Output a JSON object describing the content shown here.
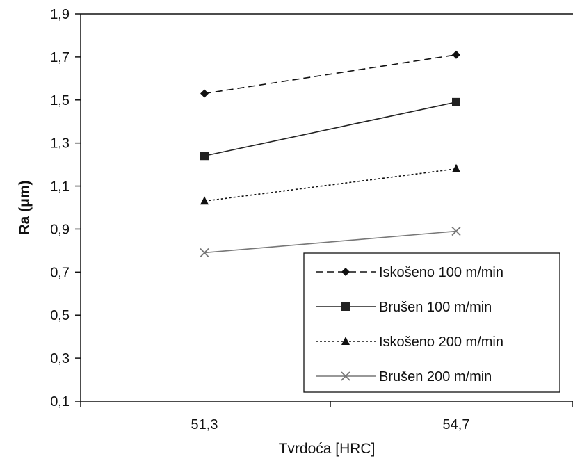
{
  "chart_data": {
    "type": "line",
    "title": "",
    "xlabel": "Tvrdoća [HRC]",
    "ylabel": "Ra (μm)",
    "categories": [
      "51,3",
      "54,7"
    ],
    "ylim": [
      0.1,
      1.9
    ],
    "yticks": [
      "0,1",
      "0,3",
      "0,5",
      "0,7",
      "0,9",
      "1,1",
      "1,3",
      "1,5",
      "1,7",
      "1,9"
    ],
    "ytick_values": [
      0.1,
      0.3,
      0.5,
      0.7,
      0.9,
      1.1,
      1.3,
      1.5,
      1.7,
      1.9
    ],
    "grid": false,
    "legend_position": "bottom-right",
    "series": [
      {
        "name": "Iskošeno 100 m/min",
        "values": [
          1.53,
          1.71
        ],
        "color": "#111111",
        "line": "dashed",
        "marker": "diamond"
      },
      {
        "name": "Brušen 100 m/min",
        "values": [
          1.24,
          1.49
        ],
        "color": "#222222",
        "line": "solid",
        "marker": "square"
      },
      {
        "name": "Iskošeno 200 m/min",
        "values": [
          1.03,
          1.18
        ],
        "color": "#111111",
        "line": "dotted",
        "marker": "triangle"
      },
      {
        "name": "Brušen 200 m/min",
        "values": [
          0.79,
          0.89
        ],
        "color": "#777777",
        "line": "solid",
        "marker": "x"
      }
    ]
  }
}
